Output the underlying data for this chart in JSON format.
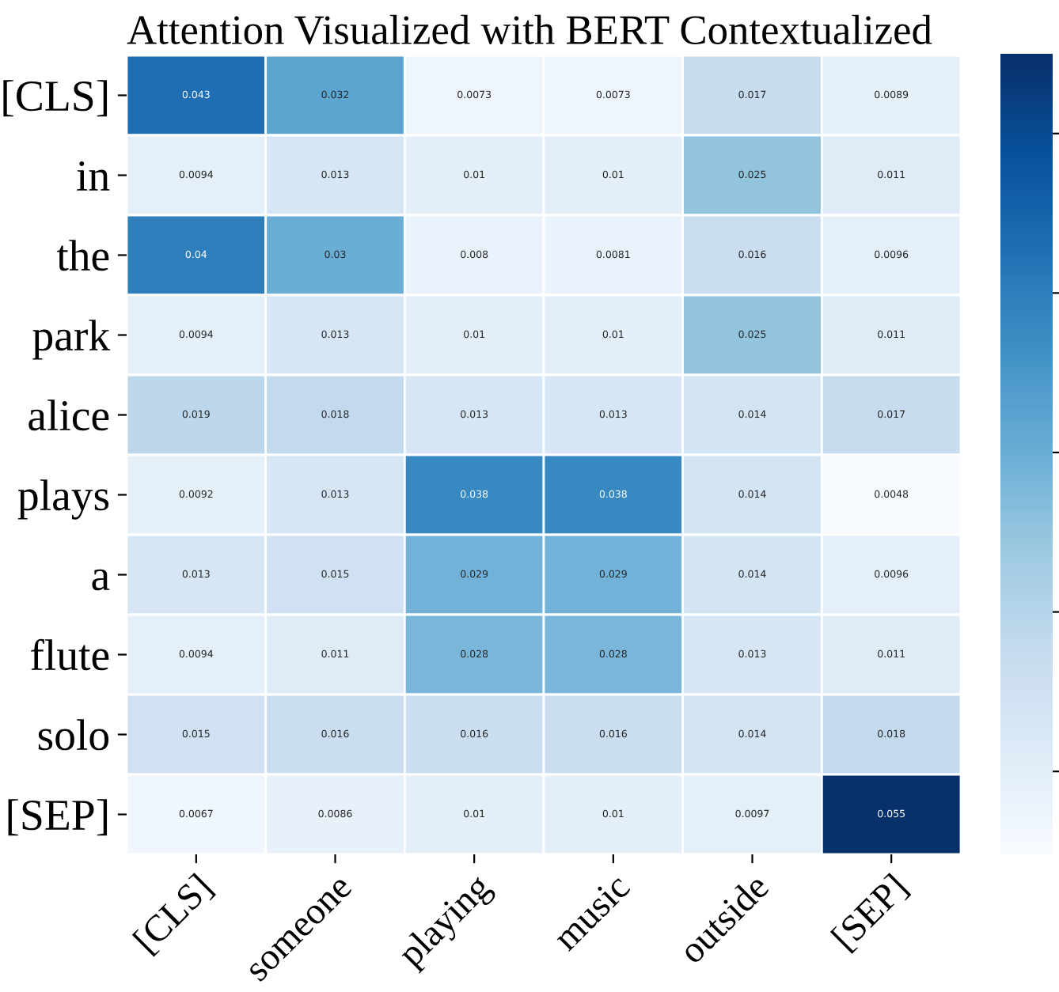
{
  "chart_data": {
    "type": "heatmap",
    "title": "Attention Visualized with BERT Contextualized",
    "categories": [
      "[CLS]",
      "someone",
      "playing",
      "music",
      "outside",
      "[SEP]"
    ],
    "y_categories": [
      "[CLS]",
      "in",
      "the",
      "park",
      "alice",
      "plays",
      "a",
      "flute",
      "solo",
      "[SEP]"
    ],
    "cells": [
      [
        0.043,
        0.032,
        0.0073,
        0.0073,
        0.017,
        0.0089
      ],
      [
        0.0094,
        0.013,
        0.01,
        0.01,
        0.025,
        0.011
      ],
      [
        0.04,
        0.03,
        0.008,
        0.0081,
        0.016,
        0.0096
      ],
      [
        0.0094,
        0.013,
        0.01,
        0.01,
        0.025,
        0.011
      ],
      [
        0.019,
        0.018,
        0.013,
        0.013,
        0.014,
        0.017
      ],
      [
        0.0092,
        0.013,
        0.038,
        0.038,
        0.014,
        0.0048
      ],
      [
        0.013,
        0.015,
        0.029,
        0.029,
        0.014,
        0.0096
      ],
      [
        0.0094,
        0.011,
        0.028,
        0.028,
        0.013,
        0.011
      ],
      [
        0.015,
        0.016,
        0.016,
        0.016,
        0.014,
        0.018
      ],
      [
        0.0067,
        0.0086,
        0.01,
        0.01,
        0.0097,
        0.055
      ]
    ],
    "data_labels": true
  }
}
